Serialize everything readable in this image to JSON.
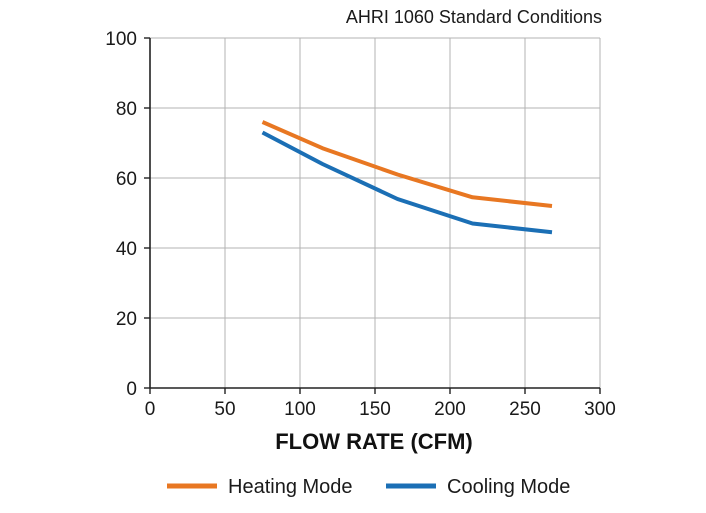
{
  "chart_data": {
    "type": "line",
    "title": "AHRI 1060 Standard Conditions",
    "xlabel": "FLOW RATE (CFM)",
    "ylabel": "",
    "xlim": [
      0,
      300
    ],
    "ylim": [
      0,
      100
    ],
    "xticks": [
      0,
      50,
      100,
      150,
      200,
      250,
      300
    ],
    "yticks": [
      0,
      20,
      40,
      60,
      80,
      100
    ],
    "grid": true,
    "legend_position": "bottom",
    "series": [
      {
        "name": "Heating Mode",
        "color": "#E87722",
        "x": [
          75,
          115,
          165,
          215,
          268
        ],
        "y": [
          76,
          68.5,
          61,
          54.5,
          52
        ]
      },
      {
        "name": "Cooling Mode",
        "color": "#1B6FB5",
        "x": [
          75,
          115,
          165,
          215,
          268
        ],
        "y": [
          73,
          64,
          54,
          47,
          44.5
        ]
      }
    ]
  }
}
